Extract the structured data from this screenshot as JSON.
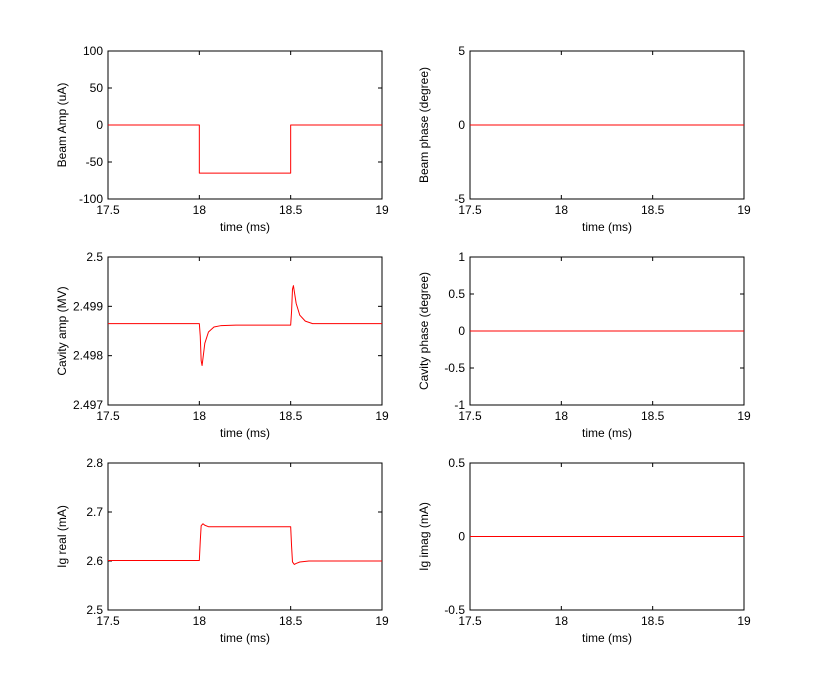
{
  "figure": {
    "background": "#ffffff",
    "line_color": "#ff0000",
    "axes_color": "#000000"
  },
  "chart_data": [
    {
      "type": "line",
      "xlabel": "time (ms)",
      "ylabel": "Beam Amp (uA)",
      "xlim": [
        17.5,
        19
      ],
      "ylim": [
        -100,
        100
      ],
      "xticks": [
        17.5,
        18,
        18.5,
        19
      ],
      "xtick_labels": [
        "17.5",
        "18",
        "18.5",
        "19"
      ],
      "yticks": [
        -100,
        -50,
        0,
        50,
        100
      ],
      "ytick_labels": [
        "-100",
        "-50",
        "0",
        "50",
        "100"
      ],
      "series": [
        {
          "color": "#ff0000",
          "x": [
            17.5,
            18.0,
            18.0,
            18.5,
            18.5,
            19.0
          ],
          "y": [
            0,
            0,
            -65,
            -65,
            0,
            0
          ]
        }
      ]
    },
    {
      "type": "line",
      "xlabel": "time (ms)",
      "ylabel": "Beam phase (degree)",
      "xlim": [
        17.5,
        19
      ],
      "ylim": [
        -5,
        5
      ],
      "xticks": [
        17.5,
        18,
        18.5,
        19
      ],
      "xtick_labels": [
        "17.5",
        "18",
        "18.5",
        "19"
      ],
      "yticks": [
        -5,
        0,
        5
      ],
      "ytick_labels": [
        "-5",
        "0",
        "5"
      ],
      "series": [
        {
          "color": "#ff0000",
          "x": [
            17.5,
            19.0
          ],
          "y": [
            0,
            0
          ]
        }
      ]
    },
    {
      "type": "line",
      "xlabel": "time (ms)",
      "ylabel": "Cavity amp (MV)",
      "xlim": [
        17.5,
        19
      ],
      "ylim": [
        2.497,
        2.5
      ],
      "xticks": [
        17.5,
        18,
        18.5,
        19
      ],
      "xtick_labels": [
        "17.5",
        "18",
        "18.5",
        "19"
      ],
      "yticks": [
        2.497,
        2.498,
        2.499,
        2.5
      ],
      "ytick_labels": [
        "2.497",
        "2.498",
        "2.499",
        "2.5"
      ],
      "series": [
        {
          "color": "#ff0000",
          "x": [
            17.5,
            18.0,
            18.005,
            18.01,
            18.015,
            18.02,
            18.03,
            18.05,
            18.08,
            18.12,
            18.2,
            18.3,
            18.5,
            18.505,
            18.51,
            18.515,
            18.52,
            18.53,
            18.55,
            18.58,
            18.62,
            18.7,
            19.0
          ],
          "y": [
            2.49865,
            2.49865,
            2.4984,
            2.4979,
            2.4978,
            2.49795,
            2.49825,
            2.49848,
            2.49858,
            2.49861,
            2.49862,
            2.49862,
            2.49862,
            2.4989,
            2.49935,
            2.49942,
            2.4993,
            2.49906,
            2.49882,
            2.4987,
            2.49865,
            2.49865,
            2.49865
          ]
        }
      ]
    },
    {
      "type": "line",
      "xlabel": "time (ms)",
      "ylabel": "Cavity phase (degree)",
      "xlim": [
        17.5,
        19
      ],
      "ylim": [
        -1,
        1
      ],
      "xticks": [
        17.5,
        18,
        18.5,
        19
      ],
      "xtick_labels": [
        "17.5",
        "18",
        "18.5",
        "19"
      ],
      "yticks": [
        -1,
        -0.5,
        0,
        0.5,
        1
      ],
      "ytick_labels": [
        "-1",
        "-0.5",
        "0",
        "0.5",
        "1"
      ],
      "series": [
        {
          "color": "#ff0000",
          "x": [
            17.5,
            19.0
          ],
          "y": [
            0,
            0
          ]
        }
      ]
    },
    {
      "type": "line",
      "xlabel": "time (ms)",
      "ylabel": "Ig real (mA)",
      "xlim": [
        17.5,
        19
      ],
      "ylim": [
        2.5,
        2.8
      ],
      "xticks": [
        17.5,
        18,
        18.5,
        19
      ],
      "xtick_labels": [
        "17.5",
        "18",
        "18.5",
        "19"
      ],
      "yticks": [
        2.5,
        2.6,
        2.7,
        2.8
      ],
      "ytick_labels": [
        "2.5",
        "2.6",
        "2.7",
        "2.8"
      ],
      "series": [
        {
          "color": "#ff0000",
          "x": [
            17.5,
            18.0,
            18.005,
            18.01,
            18.02,
            18.03,
            18.05,
            18.1,
            18.5,
            18.505,
            18.51,
            18.52,
            18.53,
            18.55,
            18.6,
            19.0
          ],
          "y": [
            2.601,
            2.601,
            2.64,
            2.672,
            2.676,
            2.673,
            2.67,
            2.67,
            2.67,
            2.63,
            2.598,
            2.593,
            2.595,
            2.598,
            2.6,
            2.6
          ]
        }
      ]
    },
    {
      "type": "line",
      "xlabel": "time (ms)",
      "ylabel": "Ig imag (mA)",
      "xlim": [
        17.5,
        19
      ],
      "ylim": [
        -0.5,
        0.5
      ],
      "xticks": [
        17.5,
        18,
        18.5,
        19
      ],
      "xtick_labels": [
        "17.5",
        "18",
        "18.5",
        "19"
      ],
      "yticks": [
        -0.5,
        0,
        0.5
      ],
      "ytick_labels": [
        "-0.5",
        "0",
        "0.5"
      ],
      "series": [
        {
          "color": "#ff0000",
          "x": [
            17.5,
            19.0
          ],
          "y": [
            0,
            0
          ]
        }
      ]
    }
  ]
}
